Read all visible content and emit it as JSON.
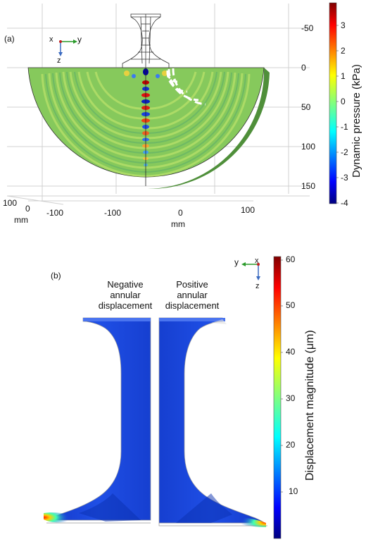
{
  "panel_a": {
    "label": "(a)",
    "axes_triad": {
      "x": "x",
      "y": "y",
      "z": "z"
    },
    "z_ticks": [
      "-50",
      "0",
      "50",
      "100",
      "150"
    ],
    "x_ticks": [
      "100",
      "0"
    ],
    "x_unit": "mm",
    "y_ticks": [
      "-100",
      "-100",
      "0",
      "100"
    ],
    "y_unit": "mm",
    "colorbar": {
      "title": "Dynamic pressure (kPa)",
      "ticks": [
        "3",
        "2",
        "1",
        "0",
        "-1",
        "-2",
        "-3",
        "-4"
      ]
    }
  },
  "panel_b": {
    "label": "(b)",
    "axes_triad": {
      "x": "x",
      "y": "y",
      "z": "z"
    },
    "left_caption": [
      "Negative",
      "annular",
      "displacement"
    ],
    "right_caption": [
      "Positive",
      "annular",
      "displacement"
    ],
    "colorbar": {
      "title": "Displacement magnitude (μm)",
      "ticks": [
        "60",
        "50",
        "40",
        "30",
        "20",
        "10"
      ]
    }
  },
  "colors": {
    "jet_low": "#00007f",
    "jet_mid": "#7fff7f",
    "jet_high": "#7f0000",
    "field_green": "#86c95c",
    "horn_blue": "#1a44d8"
  }
}
